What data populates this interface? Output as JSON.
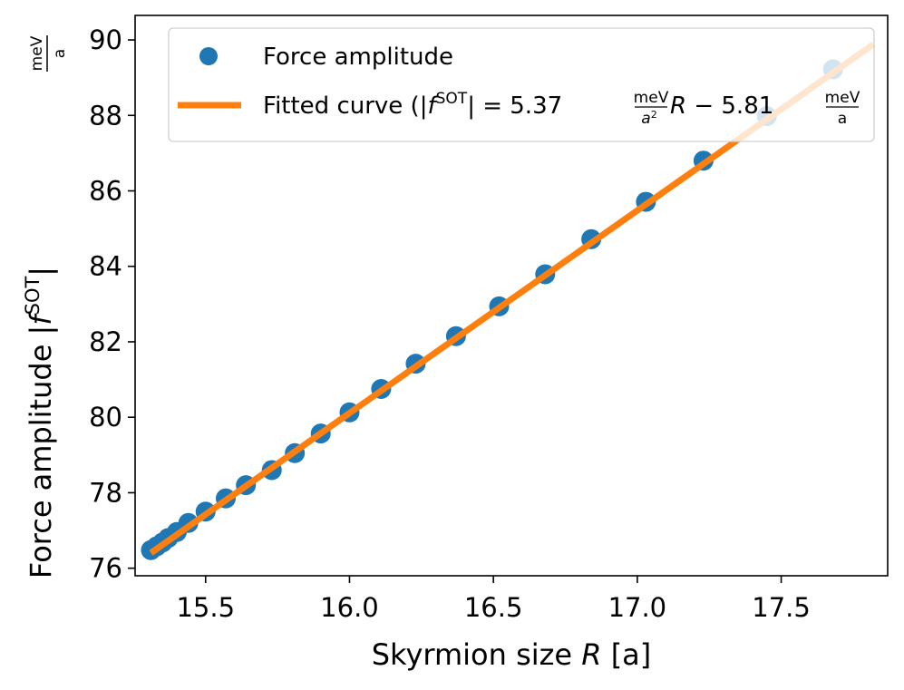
{
  "chart_data": {
    "type": "scatter",
    "xlabel": "Skyrmion size R [a]",
    "xlabel_main": "Skyrmion size ",
    "xlabel_var": "R",
    "xlabel_unit": " [a]",
    "ylabel": "Force amplitude |f^SOT| meV/a",
    "ylabel_main": "Force amplitude |",
    "ylabel_f": "f",
    "ylabel_sup": "SOT",
    "ylabel_bar": "|",
    "unit_num": "meV",
    "unit_den": "a",
    "xlim": [
      15.255,
      17.87
    ],
    "ylim": [
      75.8,
      90.65
    ],
    "xticks": [
      15.5,
      16.0,
      16.5,
      17.0,
      17.5
    ],
    "xtick_labels": [
      "15.5",
      "16.0",
      "16.5",
      "17.0",
      "17.5"
    ],
    "yticks": [
      76,
      78,
      80,
      82,
      84,
      86,
      88,
      90
    ],
    "ytick_labels": [
      "76",
      "78",
      "80",
      "82",
      "84",
      "86",
      "88",
      "90"
    ],
    "legend_position": "top-right",
    "series": [
      {
        "name": "Force amplitude",
        "kind": "scatter",
        "color": "#1f77b4",
        "x": [
          15.31,
          15.33,
          15.35,
          15.37,
          15.4,
          15.44,
          15.5,
          15.57,
          15.64,
          15.73,
          15.81,
          15.9,
          16.0,
          16.11,
          16.23,
          16.37,
          16.52,
          16.68,
          16.84,
          17.03,
          17.23,
          17.45,
          17.68
        ],
        "y": [
          76.48,
          76.58,
          76.68,
          76.8,
          76.96,
          77.2,
          77.5,
          77.85,
          78.2,
          78.6,
          79.05,
          79.57,
          80.13,
          80.75,
          81.42,
          82.15,
          82.94,
          83.79,
          84.72,
          85.71,
          86.8,
          87.98,
          89.22
        ]
      },
      {
        "name": "Fitted curve",
        "kind": "line",
        "color": "#ff7f0e",
        "slope": 5.37,
        "intercept": -5.81,
        "x_range": [
          15.31,
          17.82
        ]
      }
    ],
    "legend": {
      "scatter_label": "Force amplitude",
      "fit_prefix": "Fitted curve (|",
      "fit_f": "f",
      "fit_sup": "SOT",
      "fit_eq": "| = 5.37",
      "fit_frac1_num": "meV",
      "fit_frac1_den": "a",
      "fit_frac1_den_sup": "2",
      "fit_var": "R",
      "fit_minus": " − 5.81",
      "fit_frac2_num": "meV",
      "fit_frac2_den": "a"
    }
  }
}
